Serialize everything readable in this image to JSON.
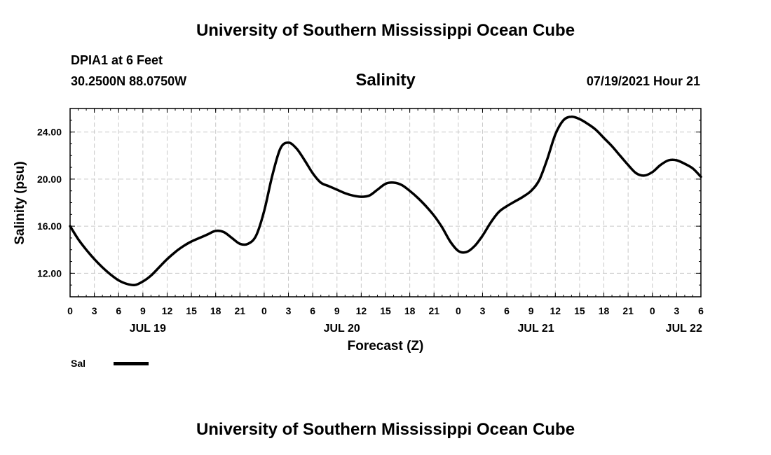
{
  "header": {
    "title": "University of Southern Mississippi Ocean Cube",
    "station": "DPIA1 at 6 Feet",
    "coordinates": "30.2500N  88.0750W",
    "run_time": "07/19/2021 Hour 21"
  },
  "footer": {
    "title": "University of Southern Mississippi Ocean Cube"
  },
  "legend": {
    "label": "Sal"
  },
  "chart_data": {
    "type": "line",
    "title": "Salinity",
    "xlabel": "Forecast (Z)",
    "ylabel": "Salinity (psu)",
    "xlim": [
      0,
      78
    ],
    "ylim": [
      10,
      26
    ],
    "yticks": [
      12,
      16,
      20,
      24
    ],
    "ytick_labels": [
      "12.00",
      "16.00",
      "20.00",
      "24.00"
    ],
    "xticks": [
      0,
      3,
      6,
      9,
      12,
      15,
      18,
      21,
      24,
      27,
      30,
      33,
      36,
      39,
      42,
      45,
      48,
      51,
      54,
      57,
      60,
      63,
      66,
      69,
      72,
      75,
      78
    ],
    "xtick_labels": [
      "0",
      "3",
      "6",
      "9",
      "12",
      "15",
      "18",
      "21",
      "0",
      "3",
      "6",
      "9",
      "12",
      "15",
      "18",
      "21",
      "0",
      "3",
      "6",
      "9",
      "12",
      "15",
      "18",
      "21",
      "0",
      "3",
      "6"
    ],
    "date_labels": [
      {
        "label": "JUL 19",
        "x": 9.6
      },
      {
        "label": "JUL 20",
        "x": 33.6
      },
      {
        "label": "JUL 21",
        "x": 57.6
      },
      {
        "label": "JUL 22",
        "x": 75.9
      }
    ],
    "grid": true,
    "legend_position": "bottom-left",
    "series": [
      {
        "name": "Sal",
        "x": [
          0,
          1,
          2,
          3,
          4,
          5,
          6,
          7,
          8,
          9,
          10,
          11,
          12,
          13,
          14,
          15,
          16,
          17,
          18,
          19,
          20,
          21,
          22,
          23,
          24,
          25,
          26,
          27,
          28,
          29,
          30,
          31,
          32,
          33,
          34,
          35,
          36,
          37,
          38,
          39,
          40,
          41,
          42,
          43,
          44,
          45,
          46,
          47,
          48,
          49,
          50,
          51,
          52,
          53,
          54,
          55,
          56,
          57,
          58,
          59,
          60,
          61,
          62,
          63,
          64,
          65,
          66,
          67,
          68,
          69,
          70,
          71,
          72,
          73,
          74,
          75,
          76,
          77,
          78
        ],
        "values": [
          16.0,
          14.9,
          14.0,
          13.2,
          12.5,
          11.9,
          11.4,
          11.1,
          11.0,
          11.3,
          11.8,
          12.5,
          13.2,
          13.8,
          14.3,
          14.7,
          15.0,
          15.3,
          15.6,
          15.5,
          15.0,
          14.5,
          14.5,
          15.2,
          17.3,
          20.3,
          22.6,
          23.1,
          22.6,
          21.6,
          20.5,
          19.7,
          19.4,
          19.1,
          18.8,
          18.6,
          18.5,
          18.6,
          19.1,
          19.6,
          19.7,
          19.5,
          19.0,
          18.4,
          17.7,
          16.9,
          15.9,
          14.7,
          13.9,
          13.8,
          14.3,
          15.2,
          16.3,
          17.2,
          17.7,
          18.1,
          18.5,
          19.0,
          19.9,
          21.7,
          23.8,
          25.0,
          25.3,
          25.1,
          24.7,
          24.2,
          23.5,
          22.8,
          22.0,
          21.2,
          20.5,
          20.3,
          20.6,
          21.2,
          21.6,
          21.6,
          21.3,
          20.9,
          20.2
        ]
      }
    ]
  }
}
